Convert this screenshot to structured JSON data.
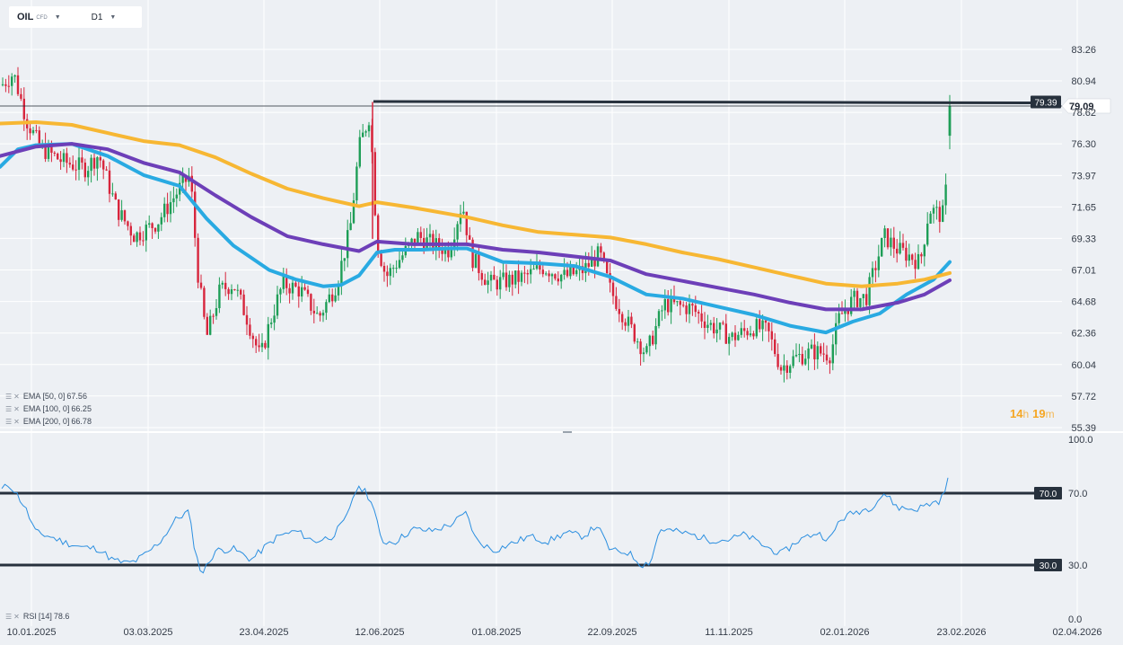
{
  "toolbar": {
    "symbol": "OIL",
    "symbol_type": "CFD",
    "interval": "D1"
  },
  "price_badges": {
    "level": "79.39",
    "last": "79.09"
  },
  "rsi_badges": {
    "upper": "70.0",
    "lower": "30.0"
  },
  "indicators": [
    {
      "name": "EMA",
      "params": "[50, 0]",
      "value": "67.56",
      "color": "#29aae2"
    },
    {
      "name": "EMA",
      "params": "[100, 0]",
      "value": "66.25",
      "color": "#6d3fb8"
    },
    {
      "name": "EMA",
      "params": "[200, 0]",
      "value": "66.78",
      "color": "#f7b733"
    }
  ],
  "rsi_legend": {
    "name": "RSI",
    "params": "[14]",
    "value": "78.6"
  },
  "countdown": {
    "hours": "14",
    "hours_unit": "h",
    "minutes": "19",
    "minutes_unit": "m"
  },
  "colors": {
    "up": "#1e9e57",
    "down": "#d7263d",
    "rsi": "#2b8fe0",
    "level": "#27313d"
  },
  "chart_data": {
    "type": "line",
    "timeframe": "D1",
    "x_ticks": [
      "10.01.2025",
      "03.03.2025",
      "23.04.2025",
      "12.06.2025",
      "01.08.2025",
      "22.09.2025",
      "11.11.2025",
      "02.01.2026",
      "23.02.2026",
      "02.04.2026"
    ],
    "y_ticks": [
      83.26,
      80.94,
      78.62,
      76.3,
      73.97,
      71.65,
      69.33,
      67.01,
      64.68,
      62.36,
      60.04,
      57.72,
      55.39
    ],
    "ylim": [
      55.39,
      83.26
    ],
    "horizontal_level": 79.39,
    "last_price": 79.09,
    "series": [
      {
        "name": "EMA [50, 0]",
        "points": [
          [
            0,
            74.6
          ],
          [
            20,
            75.9
          ],
          [
            40,
            76.2
          ],
          [
            80,
            76.3
          ],
          [
            120,
            75.4
          ],
          [
            160,
            74.0
          ],
          [
            200,
            73.2
          ],
          [
            230,
            70.8
          ],
          [
            260,
            68.8
          ],
          [
            300,
            67.0
          ],
          [
            330,
            66.3
          ],
          [
            360,
            65.8
          ],
          [
            380,
            65.9
          ],
          [
            400,
            66.6
          ],
          [
            420,
            68.3
          ],
          [
            440,
            68.5
          ],
          [
            470,
            68.5
          ],
          [
            500,
            68.6
          ],
          [
            520,
            68.6
          ],
          [
            560,
            67.6
          ],
          [
            600,
            67.5
          ],
          [
            640,
            67.3
          ],
          [
            680,
            66.5
          ],
          [
            720,
            65.2
          ],
          [
            760,
            64.9
          ],
          [
            800,
            64.3
          ],
          [
            840,
            63.7
          ],
          [
            880,
            62.9
          ],
          [
            920,
            62.4
          ],
          [
            950,
            63.2
          ],
          [
            980,
            63.8
          ],
          [
            1010,
            65.2
          ],
          [
            1040,
            66.3
          ],
          [
            1058,
            67.6
          ]
        ]
      },
      {
        "name": "EMA [100, 0]",
        "points": [
          [
            0,
            75.4
          ],
          [
            40,
            76.1
          ],
          [
            80,
            76.3
          ],
          [
            120,
            75.9
          ],
          [
            160,
            74.9
          ],
          [
            200,
            74.2
          ],
          [
            240,
            72.5
          ],
          [
            280,
            70.9
          ],
          [
            320,
            69.5
          ],
          [
            360,
            68.9
          ],
          [
            400,
            68.4
          ],
          [
            420,
            69.1
          ],
          [
            460,
            68.9
          ],
          [
            520,
            68.9
          ],
          [
            560,
            68.5
          ],
          [
            600,
            68.3
          ],
          [
            640,
            68.0
          ],
          [
            680,
            67.7
          ],
          [
            720,
            66.7
          ],
          [
            760,
            66.2
          ],
          [
            800,
            65.7
          ],
          [
            840,
            65.2
          ],
          [
            880,
            64.6
          ],
          [
            920,
            64.1
          ],
          [
            960,
            64.1
          ],
          [
            1000,
            64.6
          ],
          [
            1030,
            65.2
          ],
          [
            1058,
            66.25
          ]
        ]
      },
      {
        "name": "EMA [200, 0]",
        "points": [
          [
            0,
            77.8
          ],
          [
            40,
            77.9
          ],
          [
            80,
            77.7
          ],
          [
            120,
            77.1
          ],
          [
            160,
            76.5
          ],
          [
            200,
            76.2
          ],
          [
            240,
            75.3
          ],
          [
            280,
            74.1
          ],
          [
            320,
            73.0
          ],
          [
            360,
            72.3
          ],
          [
            400,
            71.7
          ],
          [
            420,
            72.0
          ],
          [
            460,
            71.6
          ],
          [
            520,
            70.9
          ],
          [
            560,
            70.3
          ],
          [
            600,
            69.8
          ],
          [
            640,
            69.6
          ],
          [
            680,
            69.4
          ],
          [
            720,
            68.9
          ],
          [
            760,
            68.3
          ],
          [
            800,
            67.8
          ],
          [
            840,
            67.2
          ],
          [
            880,
            66.6
          ],
          [
            920,
            66.0
          ],
          [
            960,
            65.8
          ],
          [
            1000,
            66.0
          ],
          [
            1030,
            66.3
          ],
          [
            1058,
            66.78
          ]
        ]
      }
    ],
    "rsi": {
      "name": "RSI [14]",
      "ylim": [
        0,
        100
      ],
      "y_ticks": [
        100.0,
        70.0,
        30.0,
        0.0
      ],
      "levels": [
        70.0,
        30.0
      ],
      "last": 78.6,
      "points": [
        [
          2,
          72
        ],
        [
          10,
          75
        ],
        [
          18,
          70
        ],
        [
          28,
          62
        ],
        [
          40,
          48
        ],
        [
          55,
          46
        ],
        [
          70,
          43
        ],
        [
          90,
          40
        ],
        [
          110,
          39
        ],
        [
          125,
          33
        ],
        [
          140,
          31
        ],
        [
          150,
          32
        ],
        [
          165,
          37
        ],
        [
          180,
          44
        ],
        [
          195,
          55
        ],
        [
          210,
          60
        ],
        [
          218,
          36
        ],
        [
          225,
          25
        ],
        [
          240,
          38
        ],
        [
          260,
          39
        ],
        [
          280,
          33
        ],
        [
          295,
          40
        ],
        [
          310,
          46
        ],
        [
          330,
          49
        ],
        [
          350,
          43
        ],
        [
          370,
          46
        ],
        [
          385,
          55
        ],
        [
          395,
          71
        ],
        [
          405,
          73
        ],
        [
          415,
          64
        ],
        [
          425,
          43
        ],
        [
          440,
          43
        ],
        [
          460,
          50
        ],
        [
          480,
          49
        ],
        [
          500,
          52
        ],
        [
          520,
          59
        ],
        [
          530,
          44
        ],
        [
          550,
          38
        ],
        [
          570,
          42
        ],
        [
          590,
          46
        ],
        [
          610,
          43
        ],
        [
          630,
          48
        ],
        [
          650,
          46
        ],
        [
          665,
          52
        ],
        [
          680,
          38
        ],
        [
          700,
          37
        ],
        [
          715,
          30
        ],
        [
          725,
          32
        ],
        [
          735,
          50
        ],
        [
          750,
          49
        ],
        [
          770,
          47
        ],
        [
          790,
          44
        ],
        [
          810,
          44
        ],
        [
          830,
          47
        ],
        [
          850,
          41
        ],
        [
          870,
          36
        ],
        [
          890,
          44
        ],
        [
          910,
          48
        ],
        [
          925,
          44
        ],
        [
          935,
          55
        ],
        [
          950,
          59
        ],
        [
          970,
          62
        ],
        [
          985,
          70
        ],
        [
          1000,
          62
        ],
        [
          1020,
          61
        ],
        [
          1035,
          64
        ],
        [
          1048,
          66
        ],
        [
          1058,
          78.6
        ]
      ]
    }
  }
}
